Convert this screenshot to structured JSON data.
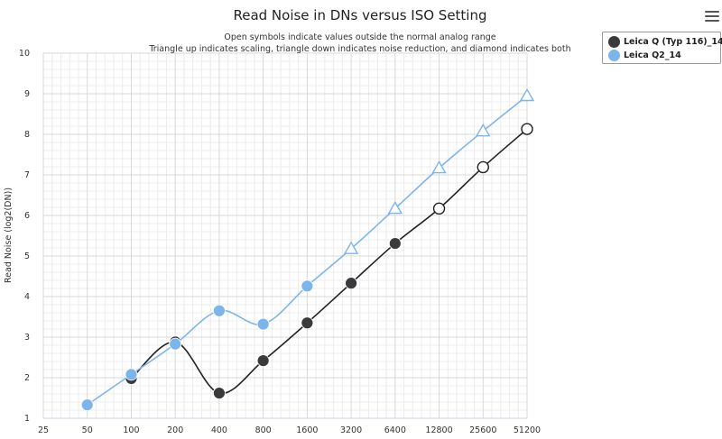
{
  "chart_data": {
    "type": "line",
    "title": "Read Noise in DNs versus ISO Setting",
    "subtitle_lines": [
      "Open symbols indicate values outside the normal analog range",
      "Triangle up indicates scaling, triangle down indicates noise reduction, and diamond indicates both"
    ],
    "xlabel": "",
    "ylabel": "Read Noise (log2(DN))",
    "x_scale": "log2",
    "x_ticks": [
      "25",
      "50",
      "100",
      "200",
      "400",
      "800",
      "1600",
      "3200",
      "6400",
      "12800",
      "25600",
      "51200"
    ],
    "xlim": [
      25,
      51200
    ],
    "ylim": [
      1,
      10
    ],
    "y_ticks": [
      1,
      2,
      3,
      4,
      5,
      6,
      7,
      8,
      9,
      10
    ],
    "grid": true,
    "legend_position": "top-right",
    "series": [
      {
        "name": "Leica Q (Typ 116)_14",
        "color": "#3a3a3c",
        "line_color": "#222222",
        "points": [
          {
            "x": 100,
            "y": 1.98,
            "marker": "circle"
          },
          {
            "x": 200,
            "y": 2.88,
            "marker": "circle"
          },
          {
            "x": 400,
            "y": 1.62,
            "marker": "circle"
          },
          {
            "x": 800,
            "y": 2.42,
            "marker": "circle"
          },
          {
            "x": 1600,
            "y": 3.35,
            "marker": "circle"
          },
          {
            "x": 3200,
            "y": 4.33,
            "marker": "circle"
          },
          {
            "x": 6400,
            "y": 5.31,
            "marker": "circle"
          },
          {
            "x": 12800,
            "y": 6.17,
            "marker": "circle-open"
          },
          {
            "x": 25600,
            "y": 7.19,
            "marker": "circle-open"
          },
          {
            "x": 51200,
            "y": 8.13,
            "marker": "circle-open"
          }
        ]
      },
      {
        "name": "Leica Q2_14",
        "color": "#7cb5ec",
        "line_color": "#7cb5ec",
        "points": [
          {
            "x": 50,
            "y": 1.33,
            "marker": "circle"
          },
          {
            "x": 100,
            "y": 2.08,
            "marker": "circle"
          },
          {
            "x": 200,
            "y": 2.83,
            "marker": "circle"
          },
          {
            "x": 400,
            "y": 3.65,
            "marker": "circle"
          },
          {
            "x": 800,
            "y": 3.32,
            "marker": "circle"
          },
          {
            "x": 1600,
            "y": 4.26,
            "marker": "circle"
          },
          {
            "x": 3200,
            "y": 5.18,
            "marker": "triangle-up-open"
          },
          {
            "x": 6400,
            "y": 6.17,
            "marker": "triangle-up-open"
          },
          {
            "x": 12800,
            "y": 7.17,
            "marker": "triangle-up-open"
          },
          {
            "x": 25600,
            "y": 8.08,
            "marker": "triangle-up-open"
          },
          {
            "x": 51200,
            "y": 8.95,
            "marker": "triangle-up-open"
          }
        ]
      }
    ]
  },
  "legend": {
    "items": [
      {
        "label": "Leica Q (Typ 116)_14",
        "color": "#3a3a3c"
      },
      {
        "label": "Leica Q2_14",
        "color": "#7cb5ec"
      }
    ]
  },
  "menu": {
    "icon": "hamburger-menu-icon"
  }
}
